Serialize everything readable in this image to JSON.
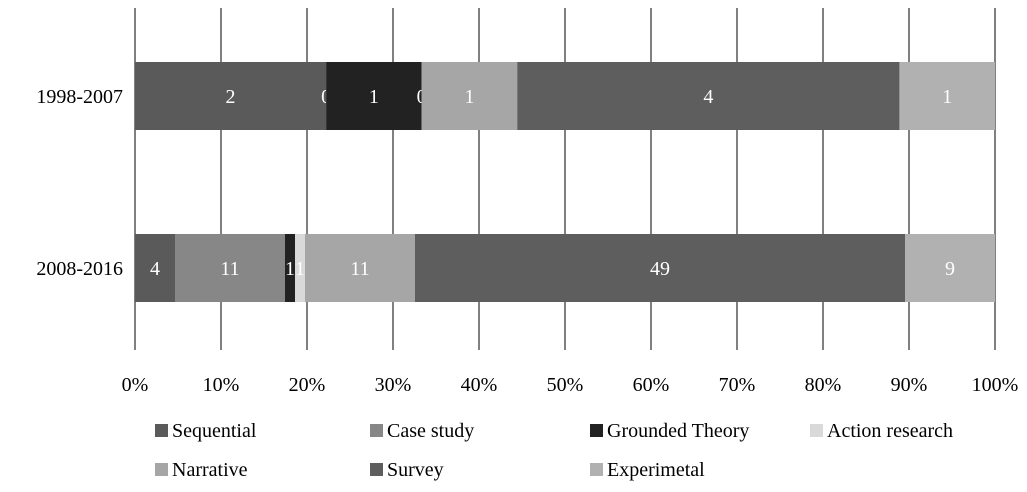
{
  "chart_data": {
    "type": "bar",
    "orientation": "horizontal",
    "stacked": "percent",
    "categories": [
      "1998-2007",
      "2008-2016"
    ],
    "series": [
      {
        "name": "Sequential",
        "color": "#5a5a5a",
        "values": [
          2,
          4
        ],
        "labels": [
          "2",
          "4"
        ]
      },
      {
        "name": "Case study",
        "color": "#878787",
        "values": [
          0,
          11
        ],
        "labels": [
          "0",
          "11"
        ]
      },
      {
        "name": "Grounded Theory",
        "color": "#222222",
        "values": [
          1,
          1
        ],
        "labels": [
          "1",
          "1"
        ]
      },
      {
        "name": "Action research",
        "color": "#d9d9d9",
        "values": [
          0,
          1
        ],
        "labels": [
          "0",
          "1"
        ]
      },
      {
        "name": "Narrative",
        "color": "#a6a6a6",
        "values": [
          1,
          11
        ],
        "labels": [
          "1",
          "11"
        ]
      },
      {
        "name": "Survey",
        "color": "#5e5e5e",
        "values": [
          4,
          49
        ],
        "labels": [
          "4",
          "49"
        ]
      },
      {
        "name": "Experimetal",
        "color": "#b1b1b1",
        "values": [
          1,
          9
        ],
        "labels": [
          "1",
          "9"
        ]
      }
    ],
    "x_ticks": [
      "0%",
      "10%",
      "20%",
      "30%",
      "40%",
      "50%",
      "60%",
      "70%",
      "80%",
      "90%",
      "100%"
    ],
    "xlim": [
      0,
      100
    ],
    "grid": "vertical",
    "legend": "bottom"
  }
}
